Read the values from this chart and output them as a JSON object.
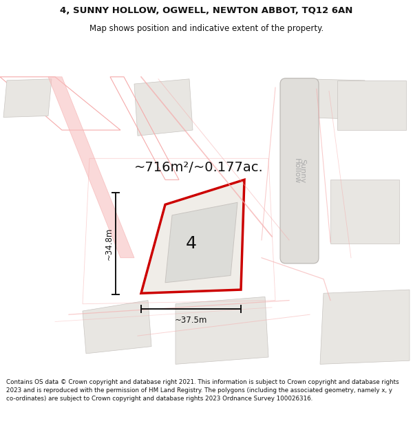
{
  "title_line1": "4, SUNNY HOLLOW, OGWELL, NEWTON ABBOT, TQ12 6AN",
  "title_line2": "Map shows position and indicative extent of the property.",
  "area_text": "~716m²/~0.177ac.",
  "label_number": "4",
  "dim_vertical": "~34.8m",
  "dim_horizontal": "~37.5m",
  "street_label": "Sunny\nHollow",
  "footer_text": "Contains OS data © Crown copyright and database right 2021. This information is subject to Crown copyright and database rights 2023 and is reproduced with the permission of HM Land Registry. The polygons (including the associated geometry, namely x, y co-ordinates) are subject to Crown copyright and database rights 2023 Ordnance Survey 100026316.",
  "bg_color": "#ffffff",
  "map_bg": "#f8f6f3",
  "plot_fill": "#f0ede8",
  "plot_edge": "#cc0000",
  "building_fill": "#dcdcd8",
  "road_color": "#f5aaaa",
  "road_light": "#f8c0c0",
  "parcel_fill": "#e8e6e2",
  "parcel_edge": "#c8c4c0",
  "street_box_fill": "#e0deda",
  "street_box_edge": "#b8b4b0",
  "street_text_color": "#aaaaaa",
  "dim_line_color": "#111111",
  "text_color": "#111111",
  "title_fontsize": 9.5,
  "subtitle_fontsize": 8.5,
  "area_fontsize": 14,
  "label_fontsize": 18,
  "dim_fontsize": 8.5,
  "footer_fontsize": 6.3
}
